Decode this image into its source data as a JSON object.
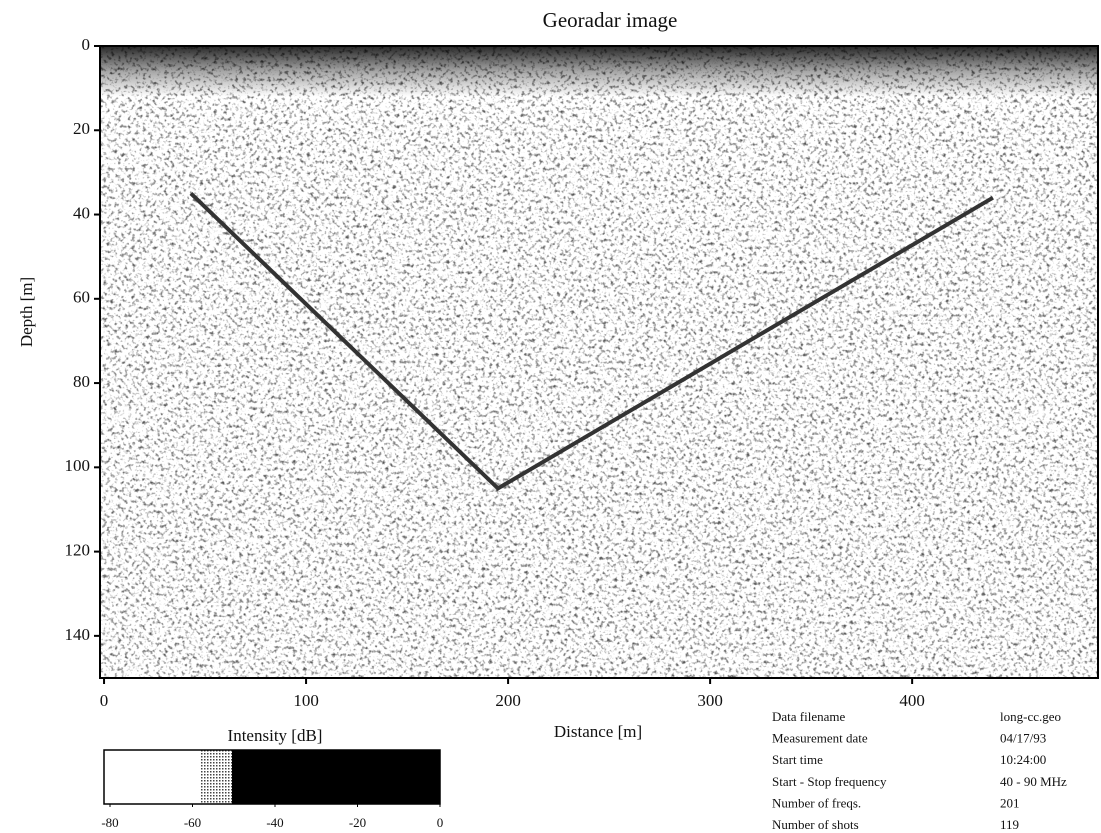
{
  "chart_data": {
    "type": "heatmap",
    "title": "Georadar image",
    "x_label": "Distance [m]",
    "y_label": "Depth [m]",
    "xlim": [
      -2,
      492
    ],
    "xticks": [
      0,
      100,
      200,
      300,
      400
    ],
    "ylim": [
      0,
      150
    ],
    "yticks": [
      0,
      20,
      40,
      60,
      80,
      100,
      120,
      140
    ],
    "y_inverted": true,
    "x": [
      43,
      195,
      440
    ],
    "series": [
      {
        "color": "#333333",
        "values": [
          35,
          105,
          36
        ]
      }
    ],
    "colorbar": {
      "label": "Intensity [dB]",
      "lim": [
        -80,
        0
      ],
      "ticks": [
        -80,
        -60,
        -40,
        -20,
        0
      ]
    },
    "info": [
      [
        "Data filename",
        "long-cc.geo"
      ],
      [
        "Measurement date",
        "04/17/93"
      ],
      [
        "Start time",
        "10:24:00"
      ],
      [
        "Start - Stop frequency",
        "40 - 90 MHz"
      ],
      [
        "Number of freqs.",
        "201"
      ],
      [
        "Number of shots",
        "119"
      ]
    ]
  }
}
